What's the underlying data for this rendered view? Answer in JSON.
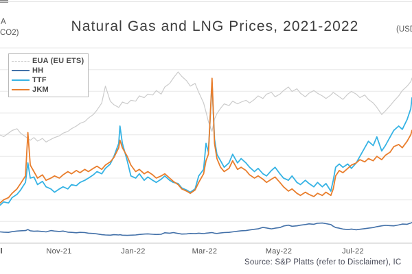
{
  "axis_labels": {
    "left_clipped_line1": "A",
    "left_clipped_line2": "CO2)",
    "right_clipped": "(USD"
  },
  "source_note": "Source: S&P Platts (refer to Disclaimer), IC",
  "colors": {
    "grid": "#e8e8e8",
    "axis_line": "#c6c6c6",
    "title_text": "#3d3d3d",
    "tick_text": "#4f4f4f",
    "source_text": "#474957"
  },
  "chart_data": {
    "type": "line",
    "title": "Natural Gas and LNG Prices, 2021-2022",
    "x_range": [
      "2021-09-13",
      "2022-08-19"
    ],
    "left_axis_range": [
      0,
      110
    ],
    "right_axis_range": [
      0,
      90
    ],
    "right_axis_gridline_step": 10,
    "grid": "horizontal-only",
    "legend_position": "top-left",
    "x_ticks": [
      {
        "label": "Nov-21",
        "date": "2021-11-01"
      },
      {
        "label": "Jan-22",
        "date": "2022-01-01"
      },
      {
        "label": "Mar-22",
        "date": "2022-03-01"
      },
      {
        "label": "May-22",
        "date": "2022-05-01"
      },
      {
        "label": "Jul-22",
        "date": "2022-07-01"
      }
    ],
    "x_dates": [
      "2021-09-13",
      "2021-09-16",
      "2021-09-20",
      "2021-09-23",
      "2021-09-27",
      "2021-09-30",
      "2021-10-04",
      "2021-10-06",
      "2021-10-08",
      "2021-10-11",
      "2021-10-14",
      "2021-10-18",
      "2021-10-21",
      "2021-10-25",
      "2021-10-28",
      "2021-11-01",
      "2021-11-04",
      "2021-11-08",
      "2021-11-11",
      "2021-11-15",
      "2021-11-18",
      "2021-11-22",
      "2021-11-25",
      "2021-11-29",
      "2021-12-02",
      "2021-12-06",
      "2021-12-09",
      "2021-12-13",
      "2021-12-16",
      "2021-12-20",
      "2021-12-21",
      "2021-12-23",
      "2021-12-27",
      "2021-12-30",
      "2022-01-03",
      "2022-01-06",
      "2022-01-10",
      "2022-01-13",
      "2022-01-17",
      "2022-01-20",
      "2022-01-24",
      "2022-01-27",
      "2022-01-31",
      "2022-02-03",
      "2022-02-07",
      "2022-02-10",
      "2022-02-14",
      "2022-02-17",
      "2022-02-21",
      "2022-02-24",
      "2022-02-28",
      "2022-03-02",
      "2022-03-04",
      "2022-03-07",
      "2022-03-09",
      "2022-03-11",
      "2022-03-14",
      "2022-03-17",
      "2022-03-21",
      "2022-03-24",
      "2022-03-28",
      "2022-03-31",
      "2022-04-04",
      "2022-04-07",
      "2022-04-11",
      "2022-04-14",
      "2022-04-18",
      "2022-04-21",
      "2022-04-25",
      "2022-04-28",
      "2022-05-02",
      "2022-05-05",
      "2022-05-09",
      "2022-05-12",
      "2022-05-16",
      "2022-05-19",
      "2022-05-23",
      "2022-05-26",
      "2022-05-30",
      "2022-06-02",
      "2022-06-06",
      "2022-06-09",
      "2022-06-13",
      "2022-06-15",
      "2022-06-17",
      "2022-06-20",
      "2022-06-23",
      "2022-06-27",
      "2022-06-30",
      "2022-07-04",
      "2022-07-07",
      "2022-07-11",
      "2022-07-14",
      "2022-07-18",
      "2022-07-21",
      "2022-07-25",
      "2022-07-28",
      "2022-08-01",
      "2022-08-04",
      "2022-08-08",
      "2022-08-11",
      "2022-08-15",
      "2022-08-18",
      "2022-08-19"
    ],
    "series": [
      {
        "name": "EUA (EU ETS)",
        "axis": "left",
        "unit": "EUR/tCO2",
        "color": "#cbcbcb",
        "line_width": 1.2,
        "legend_swatch": "dashed",
        "values": [
          61,
          60,
          62,
          63.5,
          64.5,
          62,
          60,
          59,
          58,
          59.5,
          57.5,
          59,
          57,
          58.5,
          59.5,
          60.5,
          62,
          63,
          64.5,
          66,
          67.5,
          68.5,
          70.5,
          72.5,
          75,
          79,
          88.5,
          80,
          78,
          76.5,
          77.5,
          79.5,
          78.5,
          80.5,
          80,
          83,
          82,
          84,
          83.5,
          86,
          84,
          88,
          90,
          93,
          96.5,
          94,
          91.5,
          88.5,
          90,
          85,
          79,
          74,
          68.5,
          63,
          70,
          73,
          76,
          78.5,
          77.5,
          80,
          78.5,
          79.5,
          80.5,
          79,
          81,
          83,
          81.5,
          84,
          85,
          82.5,
          84,
          86,
          88,
          85.5,
          87,
          84.5,
          82.5,
          84.5,
          86,
          84.5,
          83,
          81.5,
          83.5,
          85,
          84,
          82.5,
          81,
          84,
          85.5,
          84,
          82,
          83.5,
          81,
          79,
          76.5,
          72.5,
          74.5,
          77.5,
          80,
          83,
          86,
          88.5,
          91,
          93
        ]
      },
      {
        "name": "HH",
        "axis": "right",
        "unit": "USD/MMBtu",
        "color": "#4270a8",
        "line_width": 1.6,
        "legend_swatch": "solid",
        "values": [
          5.2,
          5.1,
          5.0,
          5.3,
          5.6,
          5.7,
          5.8,
          6.3,
          5.7,
          5.5,
          5.6,
          5.4,
          5.2,
          5.8,
          5.6,
          5.4,
          5.6,
          5.1,
          5.0,
          4.8,
          5.0,
          4.9,
          4.6,
          4.5,
          4.3,
          3.9,
          3.8,
          3.7,
          3.9,
          3.8,
          3.9,
          3.7,
          3.6,
          3.7,
          3.8,
          4.0,
          4.2,
          4.3,
          4.1,
          4.0,
          4.1,
          4.8,
          4.6,
          4.9,
          4.5,
          4.2,
          4.3,
          4.5,
          4.4,
          4.6,
          4.4,
          4.6,
          4.7,
          4.9,
          4.6,
          4.5,
          4.7,
          4.9,
          5.0,
          5.2,
          5.5,
          5.7,
          5.8,
          6.1,
          6.4,
          6.6,
          7.3,
          7.0,
          6.6,
          6.9,
          7.2,
          7.9,
          8.3,
          7.8,
          8.0,
          8.3,
          8.6,
          8.9,
          8.7,
          9.2,
          9.3,
          9.0,
          8.6,
          7.8,
          7.2,
          6.9,
          6.5,
          6.3,
          6.5,
          6.2,
          6.4,
          6.7,
          6.9,
          7.2,
          7.6,
          8.0,
          8.2,
          8.1,
          8.0,
          8.4,
          8.8,
          8.7,
          9.3,
          9.5
        ]
      },
      {
        "name": "TTF",
        "axis": "right",
        "unit": "USD/MMBtu",
        "color": "#36b3e4",
        "line_width": 1.8,
        "legend_swatch": "solid",
        "values": [
          17.5,
          19,
          18.5,
          21,
          22.5,
          24.5,
          28,
          37,
          30,
          30.5,
          27,
          28.5,
          26,
          25,
          23.5,
          25,
          26,
          25,
          27,
          26.5,
          28,
          29,
          30,
          31.5,
          33,
          32,
          34.5,
          36.5,
          40,
          46,
          54,
          46,
          38,
          31,
          30,
          32,
          29,
          30.5,
          29,
          28,
          29.5,
          31,
          29,
          28,
          27.5,
          25.5,
          24.5,
          23.5,
          25,
          31,
          34,
          46,
          42,
          74,
          48,
          41,
          38,
          35,
          37,
          41,
          37,
          39,
          37,
          35,
          33,
          34.5,
          32,
          31,
          33.5,
          35,
          32,
          30,
          29,
          31,
          28,
          27,
          29,
          27.5,
          26,
          28,
          26,
          27.5,
          24,
          29,
          35,
          36.5,
          35,
          36.5,
          34.5,
          37,
          40,
          44,
          47,
          45,
          49,
          42.5,
          45,
          49,
          52,
          54,
          52.5,
          57,
          62,
          67
        ]
      },
      {
        "name": "JKM",
        "axis": "right",
        "unit": "USD/MMBtu",
        "color": "#e97e2d",
        "line_width": 1.8,
        "legend_swatch": "solid",
        "values": [
          18.5,
          20,
          21,
          23,
          25,
          27.5,
          31,
          51,
          36,
          33,
          30,
          31.5,
          29,
          30,
          31,
          30,
          31.5,
          33,
          32,
          33.5,
          32.5,
          34,
          33,
          34.5,
          35.5,
          34,
          36,
          37.5,
          39.5,
          44,
          47.5,
          44,
          40,
          36,
          33,
          34,
          32,
          33,
          31.5,
          30,
          31,
          32,
          30,
          28.5,
          27,
          25,
          24,
          23,
          24.5,
          28,
          32,
          38,
          41,
          76,
          46,
          39,
          35,
          33,
          34.5,
          38,
          34,
          35,
          33.5,
          31.5,
          30,
          31,
          29.5,
          28,
          29.5,
          30.5,
          28,
          26,
          24,
          25,
          23,
          22,
          23.5,
          22.5,
          21.5,
          23,
          22,
          23.5,
          22,
          25,
          31,
          33.5,
          32.5,
          34.5,
          36,
          37,
          38.5,
          37.5,
          39,
          38,
          40,
          38.5,
          40.5,
          42,
          44.5,
          45.5,
          44,
          47,
          50,
          52
        ]
      }
    ]
  }
}
